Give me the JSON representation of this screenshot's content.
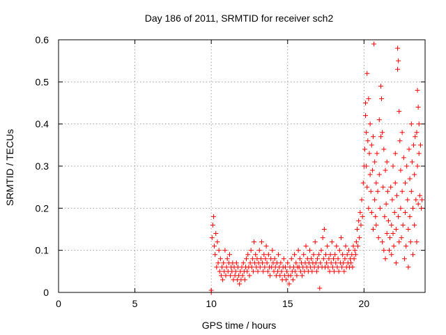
{
  "chart_data": {
    "type": "scatter",
    "title": "Day 186 of 2011, SRMTID for receiver sch2",
    "xlabel": "GPS time / hours",
    "ylabel": "SRMTID / TECUs",
    "xlim": [
      0,
      24
    ],
    "ylim": [
      0,
      0.6
    ],
    "xticks": [
      0,
      5,
      10,
      15,
      20
    ],
    "yticks": [
      0,
      0.1,
      0.2,
      0.3,
      0.4,
      0.5,
      0.6
    ],
    "xtick_labels": [
      "0",
      "5",
      "10",
      "15",
      "20"
    ],
    "ytick_labels": [
      "0",
      "0.1",
      "0.2",
      "0.3",
      "0.4",
      "0.5",
      "0.6"
    ],
    "grid": true,
    "marker": "+",
    "color": "#ff0000",
    "series": [
      {
        "name": "sch2",
        "points": [
          [
            10.0,
            0.0
          ],
          [
            10.0,
            0.005
          ],
          [
            10.05,
            0.13
          ],
          [
            10.1,
            0.16
          ],
          [
            10.15,
            0.18
          ],
          [
            10.2,
            0.11
          ],
          [
            10.25,
            0.09
          ],
          [
            10.3,
            0.14
          ],
          [
            10.35,
            0.06
          ],
          [
            10.4,
            0.12
          ],
          [
            10.45,
            0.07
          ],
          [
            10.5,
            0.1
          ],
          [
            10.55,
            0.05
          ],
          [
            10.6,
            0.08
          ],
          [
            10.65,
            0.04
          ],
          [
            10.7,
            0.06
          ],
          [
            10.75,
            0.03
          ],
          [
            10.8,
            0.07
          ],
          [
            10.85,
            0.05
          ],
          [
            10.9,
            0.1
          ],
          [
            10.95,
            0.04
          ],
          [
            11.0,
            0.06
          ],
          [
            11.05,
            0.08
          ],
          [
            11.1,
            0.05
          ],
          [
            11.15,
            0.07
          ],
          [
            11.2,
            0.09
          ],
          [
            11.25,
            0.04
          ],
          [
            11.3,
            0.06
          ],
          [
            11.35,
            0.05
          ],
          [
            11.4,
            0.07
          ],
          [
            11.45,
            0.03
          ],
          [
            11.5,
            0.06
          ],
          [
            11.55,
            0.04
          ],
          [
            11.6,
            0.05
          ],
          [
            11.65,
            0.07
          ],
          [
            11.7,
            0.03
          ],
          [
            11.75,
            0.06
          ],
          [
            11.8,
            0.04
          ],
          [
            11.85,
            0.02
          ],
          [
            11.9,
            0.05
          ],
          [
            11.95,
            0.03
          ],
          [
            12.0,
            0.06
          ],
          [
            12.05,
            0.04
          ],
          [
            12.1,
            0.07
          ],
          [
            12.15,
            0.05
          ],
          [
            12.2,
            0.03
          ],
          [
            12.25,
            0.06
          ],
          [
            12.3,
            0.08
          ],
          [
            12.35,
            0.05
          ],
          [
            12.4,
            0.09
          ],
          [
            12.45,
            0.06
          ],
          [
            12.5,
            0.04
          ],
          [
            12.55,
            0.07
          ],
          [
            12.6,
            0.1
          ],
          [
            12.65,
            0.06
          ],
          [
            12.7,
            0.08
          ],
          [
            12.75,
            0.05
          ],
          [
            12.8,
            0.12
          ],
          [
            12.85,
            0.07
          ],
          [
            12.9,
            0.09
          ],
          [
            12.95,
            0.06
          ],
          [
            13.0,
            0.08
          ],
          [
            13.05,
            0.05
          ],
          [
            13.1,
            0.07
          ],
          [
            13.15,
            0.1
          ],
          [
            13.2,
            0.06
          ],
          [
            13.25,
            0.08
          ],
          [
            13.3,
            0.12
          ],
          [
            13.35,
            0.07
          ],
          [
            13.4,
            0.05
          ],
          [
            13.45,
            0.09
          ],
          [
            13.5,
            0.06
          ],
          [
            13.55,
            0.08
          ],
          [
            13.6,
            0.11
          ],
          [
            13.65,
            0.07
          ],
          [
            13.7,
            0.05
          ],
          [
            13.75,
            0.09
          ],
          [
            13.8,
            0.06
          ],
          [
            13.85,
            0.04
          ],
          [
            13.9,
            0.08
          ],
          [
            13.95,
            0.06
          ],
          [
            14.0,
            0.1
          ],
          [
            14.05,
            0.07
          ],
          [
            14.1,
            0.05
          ],
          [
            14.15,
            0.08
          ],
          [
            14.2,
            0.06
          ],
          [
            14.25,
            0.04
          ],
          [
            14.3,
            0.07
          ],
          [
            14.35,
            0.05
          ],
          [
            14.4,
            0.09
          ],
          [
            14.45,
            0.06
          ],
          [
            14.5,
            0.04
          ],
          [
            14.55,
            0.07
          ],
          [
            14.6,
            0.05
          ],
          [
            14.65,
            0.03
          ],
          [
            14.7,
            0.06
          ],
          [
            14.75,
            0.08
          ],
          [
            14.8,
            0.04
          ],
          [
            14.85,
            0.06
          ],
          [
            14.9,
            0.03
          ],
          [
            14.95,
            0.05
          ],
          [
            15.0,
            0.07
          ],
          [
            15.05,
            0.04
          ],
          [
            15.1,
            0.02
          ],
          [
            15.15,
            0.06
          ],
          [
            15.2,
            0.04
          ],
          [
            15.25,
            0.08
          ],
          [
            15.3,
            0.05
          ],
          [
            15.35,
            0.03
          ],
          [
            15.4,
            0.06
          ],
          [
            15.45,
            0.09
          ],
          [
            15.5,
            0.05
          ],
          [
            15.55,
            0.07
          ],
          [
            15.6,
            0.04
          ],
          [
            15.65,
            0.06
          ],
          [
            15.7,
            0.1
          ],
          [
            15.75,
            0.06
          ],
          [
            15.8,
            0.08
          ],
          [
            15.85,
            0.05
          ],
          [
            15.9,
            0.07
          ],
          [
            15.95,
            0.04
          ],
          [
            16.0,
            0.06
          ],
          [
            16.05,
            0.09
          ],
          [
            16.1,
            0.05
          ],
          [
            16.15,
            0.07
          ],
          [
            16.2,
            0.11
          ],
          [
            16.25,
            0.06
          ],
          [
            16.3,
            0.08
          ],
          [
            16.35,
            0.05
          ],
          [
            16.4,
            0.07
          ],
          [
            16.45,
            0.1
          ],
          [
            16.5,
            0.06
          ],
          [
            16.55,
            0.08
          ],
          [
            16.6,
            0.05
          ],
          [
            16.65,
            0.07
          ],
          [
            16.7,
            0.09
          ],
          [
            16.75,
            0.06
          ],
          [
            16.8,
            0.12
          ],
          [
            16.85,
            0.07
          ],
          [
            16.9,
            0.05
          ],
          [
            16.95,
            0.08
          ],
          [
            17.0,
            0.06
          ],
          [
            17.05,
            0.09
          ],
          [
            17.1,
            0.01
          ],
          [
            17.15,
            0.07
          ],
          [
            17.2,
            0.1
          ],
          [
            17.25,
            0.06
          ],
          [
            17.3,
            0.13
          ],
          [
            17.35,
            0.08
          ],
          [
            17.4,
            0.15
          ],
          [
            17.45,
            0.06
          ],
          [
            17.5,
            0.09
          ],
          [
            17.55,
            0.07
          ],
          [
            17.6,
            0.11
          ],
          [
            17.65,
            0.06
          ],
          [
            17.7,
            0.08
          ],
          [
            17.75,
            0.05
          ],
          [
            17.8,
            0.09
          ],
          [
            17.85,
            0.07
          ],
          [
            17.9,
            0.12
          ],
          [
            17.95,
            0.06
          ],
          [
            18.0,
            0.08
          ],
          [
            18.05,
            0.05
          ],
          [
            18.1,
            0.09
          ],
          [
            18.15,
            0.07
          ],
          [
            18.2,
            0.11
          ],
          [
            18.25,
            0.06
          ],
          [
            18.3,
            0.08
          ],
          [
            18.35,
            0.05
          ],
          [
            18.4,
            0.1
          ],
          [
            18.45,
            0.07
          ],
          [
            18.5,
            0.13
          ],
          [
            18.55,
            0.06
          ],
          [
            18.6,
            0.09
          ],
          [
            18.65,
            0.07
          ],
          [
            18.7,
            0.05
          ],
          [
            18.75,
            0.08
          ],
          [
            18.8,
            0.11
          ],
          [
            18.85,
            0.06
          ],
          [
            18.9,
            0.09
          ],
          [
            18.95,
            0.07
          ],
          [
            19.0,
            0.1
          ],
          [
            19.05,
            0.06
          ],
          [
            19.1,
            0.08
          ],
          [
            19.15,
            0.07
          ],
          [
            19.2,
            0.09
          ],
          [
            19.25,
            0.06
          ],
          [
            19.3,
            0.11
          ],
          [
            19.35,
            0.08
          ],
          [
            19.4,
            0.1
          ],
          [
            19.45,
            0.09
          ],
          [
            19.5,
            0.12
          ],
          [
            19.55,
            0.15
          ],
          [
            19.6,
            0.11
          ],
          [
            19.65,
            0.17
          ],
          [
            19.7,
            0.13
          ],
          [
            19.75,
            0.19
          ],
          [
            19.8,
            0.16
          ],
          [
            19.85,
            0.22
          ],
          [
            19.9,
            0.18
          ],
          [
            19.95,
            0.26
          ],
          [
            20.0,
            0.3
          ],
          [
            20.05,
            0.34
          ],
          [
            20.1,
            0.45
          ],
          [
            20.1,
            0.42
          ],
          [
            20.15,
            0.38
          ],
          [
            20.15,
            0.3
          ],
          [
            20.2,
            0.52
          ],
          [
            20.2,
            0.25
          ],
          [
            20.25,
            0.36
          ],
          [
            20.3,
            0.46
          ],
          [
            20.3,
            0.2
          ],
          [
            20.35,
            0.33
          ],
          [
            20.4,
            0.4
          ],
          [
            20.4,
            0.28
          ],
          [
            20.45,
            0.24
          ],
          [
            20.5,
            0.35
          ],
          [
            20.5,
            0.19
          ],
          [
            20.55,
            0.29
          ],
          [
            20.6,
            0.15
          ],
          [
            20.6,
            0.37
          ],
          [
            20.65,
            0.59
          ],
          [
            20.7,
            0.22
          ],
          [
            20.7,
            0.31
          ],
          [
            20.75,
            0.18
          ],
          [
            20.8,
            0.26
          ],
          [
            20.8,
            0.16
          ],
          [
            20.85,
            0.33
          ],
          [
            20.9,
            0.24
          ],
          [
            20.95,
            0.13
          ],
          [
            21.0,
            0.41
          ],
          [
            21.0,
            0.28
          ],
          [
            21.05,
            0.2
          ],
          [
            21.1,
            0.37
          ],
          [
            21.1,
            0.49
          ],
          [
            21.15,
            0.46
          ],
          [
            21.2,
            0.38
          ],
          [
            21.2,
            0.12
          ],
          [
            21.25,
            0.25
          ],
          [
            21.3,
            0.34
          ],
          [
            21.3,
            0.1
          ],
          [
            21.35,
            0.18
          ],
          [
            21.4,
            0.29
          ],
          [
            21.4,
            0.08
          ],
          [
            21.45,
            0.21
          ],
          [
            21.5,
            0.14
          ],
          [
            21.5,
            0.31
          ],
          [
            21.55,
            0.24
          ],
          [
            21.6,
            0.17
          ],
          [
            21.65,
            0.1
          ],
          [
            21.7,
            0.13
          ],
          [
            21.75,
            0.25
          ],
          [
            21.8,
            0.16
          ],
          [
            21.8,
            0.09
          ],
          [
            21.85,
            0.22
          ],
          [
            21.9,
            0.14
          ],
          [
            21.9,
            0.3
          ],
          [
            21.95,
            0.11
          ],
          [
            22.0,
            0.19
          ],
          [
            22.05,
            0.33
          ],
          [
            22.05,
            0.26
          ],
          [
            22.1,
            0.15
          ],
          [
            22.1,
            0.07
          ],
          [
            22.15,
            0.23
          ],
          [
            22.2,
            0.58
          ],
          [
            22.2,
            0.53
          ],
          [
            22.25,
            0.55
          ],
          [
            22.25,
            0.18
          ],
          [
            22.3,
            0.43
          ],
          [
            22.3,
            0.12
          ],
          [
            22.35,
            0.36
          ],
          [
            22.4,
            0.29
          ],
          [
            22.4,
            0.2
          ],
          [
            22.45,
            0.13
          ],
          [
            22.5,
            0.38
          ],
          [
            22.5,
            0.24
          ],
          [
            22.55,
            0.16
          ],
          [
            22.6,
            0.32
          ],
          [
            22.65,
            0.08
          ],
          [
            22.7,
            0.26
          ],
          [
            22.7,
            0.19
          ],
          [
            22.75,
            0.11
          ],
          [
            22.8,
            0.3
          ],
          [
            22.85,
            0.22
          ],
          [
            22.9,
            0.15
          ],
          [
            22.9,
            0.06
          ],
          [
            22.95,
            0.34
          ],
          [
            23.0,
            0.27
          ],
          [
            23.0,
            0.18
          ],
          [
            23.05,
            0.12
          ],
          [
            23.1,
            0.4
          ],
          [
            23.1,
            0.24
          ],
          [
            23.15,
            0.31
          ],
          [
            23.2,
            0.2
          ],
          [
            23.2,
            0.09
          ],
          [
            23.25,
            0.35
          ],
          [
            23.3,
            0.28
          ],
          [
            23.3,
            0.16
          ],
          [
            23.35,
            0.37
          ],
          [
            23.4,
            0.22
          ],
          [
            23.45,
            0.38
          ],
          [
            23.45,
            0.12
          ],
          [
            23.5,
            0.48
          ],
          [
            23.5,
            0.3
          ],
          [
            23.55,
            0.44
          ],
          [
            23.55,
            0.21
          ],
          [
            23.6,
            0.4
          ],
          [
            23.6,
            0.33
          ],
          [
            23.65,
            0.23
          ],
          [
            23.7,
            0.35
          ],
          [
            23.75,
            0.2
          ],
          [
            23.8,
            0.22
          ]
        ]
      }
    ]
  }
}
